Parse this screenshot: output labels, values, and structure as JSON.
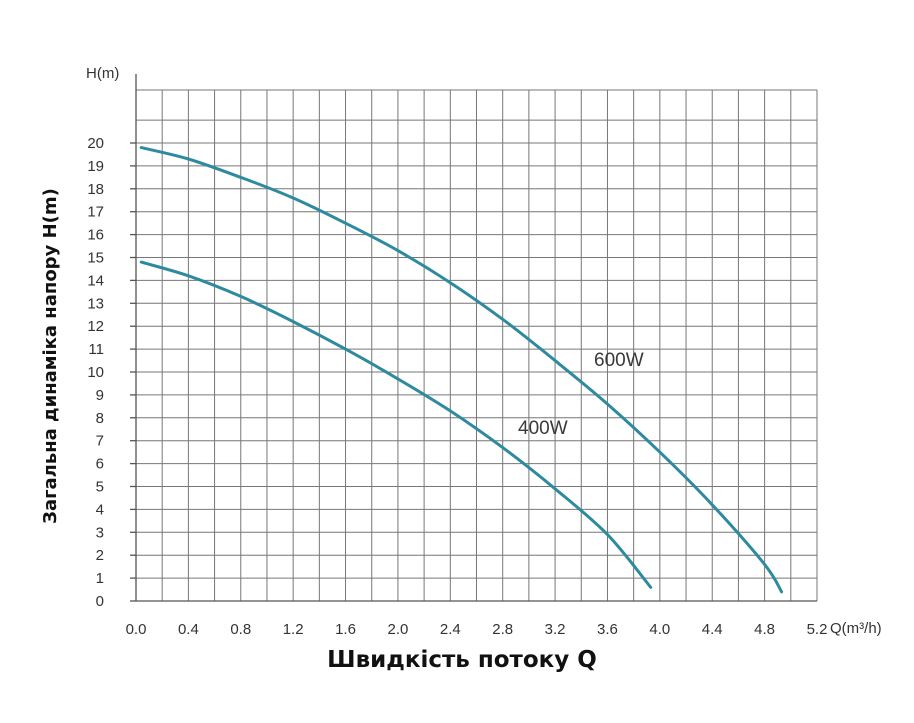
{
  "chart_data": {
    "type": "line",
    "title": "",
    "xlabel": "Швидкість потоку Q",
    "ylabel": "Загальна динаміка напору H(m)",
    "x_unit": "Q(m³/h)",
    "y_unit": "H(m)",
    "xlim": [
      0,
      5.2
    ],
    "ylim": [
      0,
      21
    ],
    "x_ticks": [
      "0.0",
      "0.4",
      "0.8",
      "1.2",
      "1.6",
      "2.0",
      "2.4",
      "2.8",
      "3.2",
      "3.6",
      "4.0",
      "4.4",
      "4.8",
      "5.2"
    ],
    "y_ticks": [
      "0",
      "1",
      "2",
      "3",
      "4",
      "5",
      "6",
      "7",
      "8",
      "9",
      "10",
      "11",
      "12",
      "13",
      "14",
      "15",
      "16",
      "17",
      "18",
      "19",
      "20"
    ],
    "grid": true,
    "line_color": "#2e8a9e",
    "series": [
      {
        "name": "600W",
        "x": [
          0.04,
          0.4,
          0.8,
          1.2,
          1.6,
          2.0,
          2.4,
          2.8,
          3.2,
          3.6,
          4.0,
          4.4,
          4.8,
          4.93
        ],
        "y": [
          19.8,
          19.3,
          18.5,
          17.6,
          16.5,
          15.3,
          13.9,
          12.3,
          10.5,
          8.6,
          6.5,
          4.2,
          1.6,
          0.4
        ]
      },
      {
        "name": "400W",
        "x": [
          0.04,
          0.4,
          0.8,
          1.2,
          1.6,
          2.0,
          2.4,
          2.8,
          3.2,
          3.6,
          3.93
        ],
        "y": [
          14.8,
          14.2,
          13.3,
          12.2,
          11.0,
          9.7,
          8.3,
          6.7,
          4.9,
          2.9,
          0.6
        ]
      }
    ]
  }
}
